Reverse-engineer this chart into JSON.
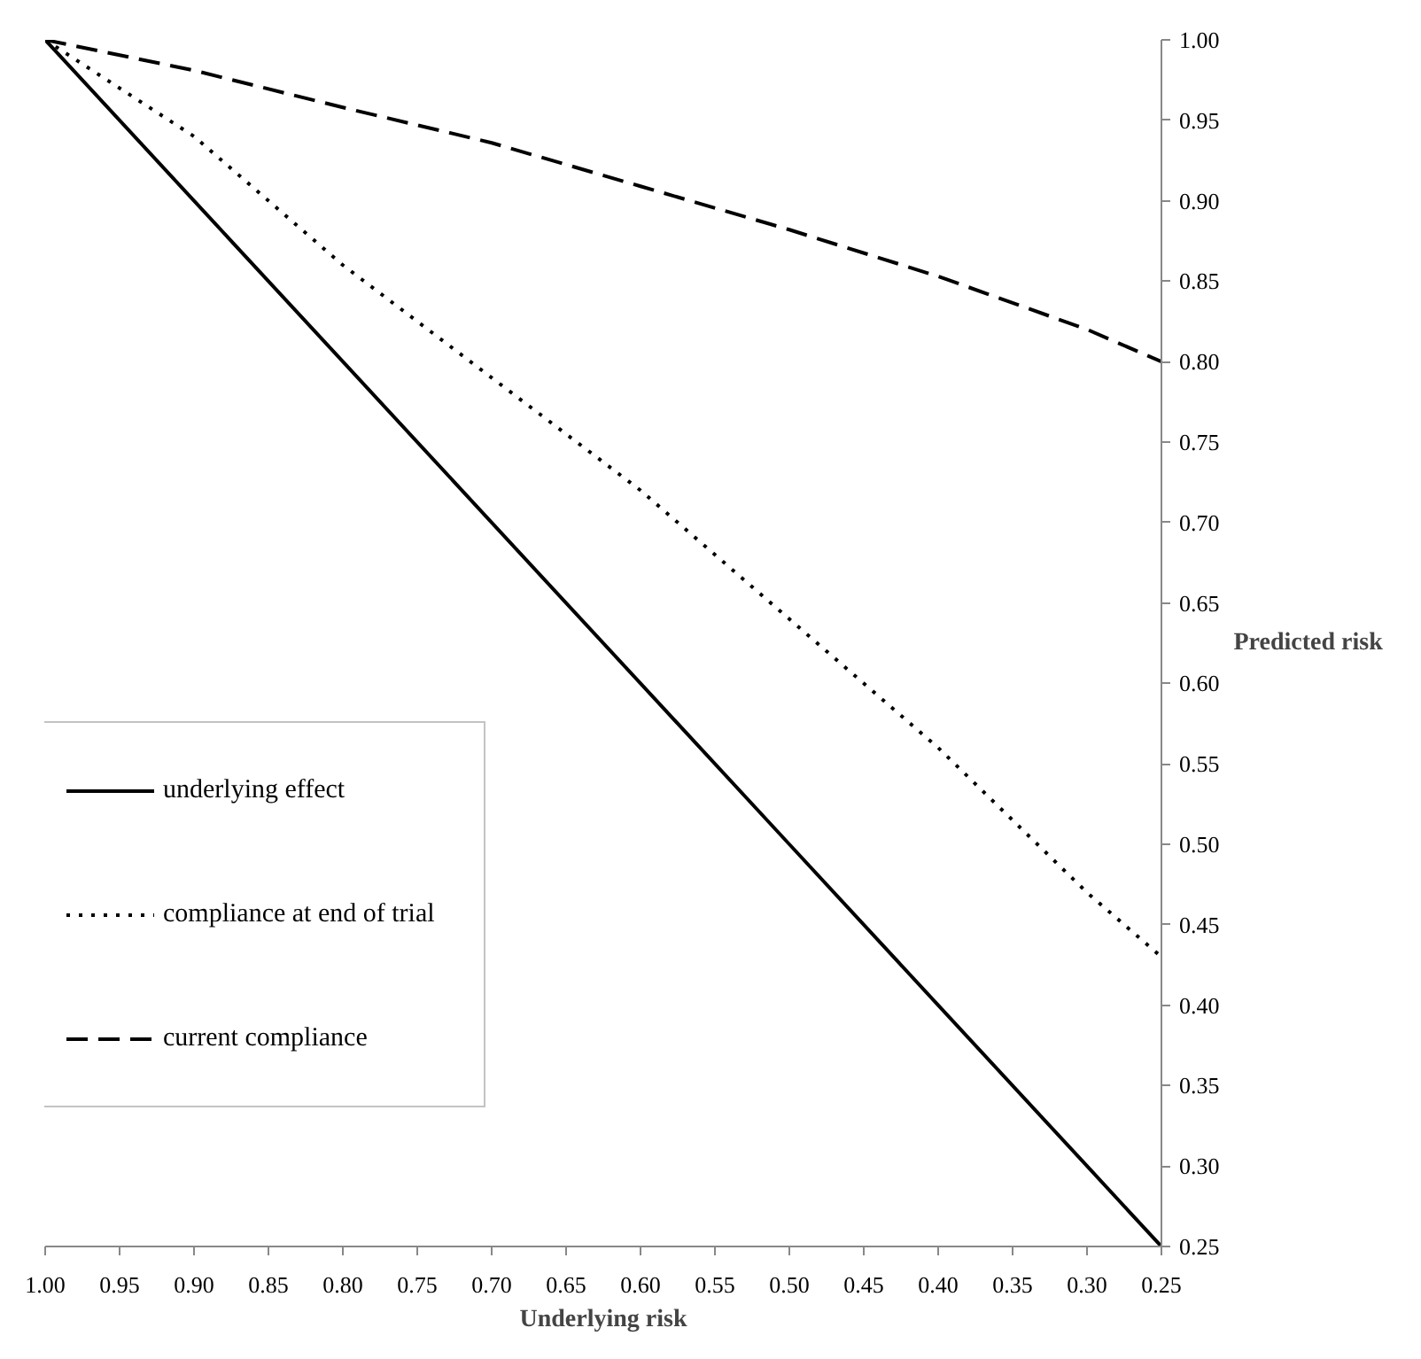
{
  "chart_data": {
    "type": "line",
    "xlabel": "Underlying risk",
    "ylabel": "Predicted risk",
    "x": [
      1.0,
      0.9,
      0.8,
      0.7,
      0.6,
      0.5,
      0.4,
      0.3,
      0.25
    ],
    "series": [
      {
        "name": "underlying effect",
        "color": "#000000",
        "line_style": "solid",
        "values": [
          1.0,
          0.9,
          0.8,
          0.7,
          0.6,
          0.5,
          0.4,
          0.3,
          0.25
        ]
      },
      {
        "name": "compliance at end of trial",
        "color": "#000000",
        "line_style": "dotted",
        "values": [
          1.0,
          0.94,
          0.86,
          0.79,
          0.72,
          0.64,
          0.56,
          0.47,
          0.43
        ]
      },
      {
        "name": "current compliance",
        "color": "#000000",
        "line_style": "dashed",
        "values": [
          1.0,
          0.981,
          0.958,
          0.936,
          0.909,
          0.882,
          0.853,
          0.82,
          0.8
        ]
      }
    ],
    "xlim": [
      1.0,
      0.25
    ],
    "ylim": [
      0.25,
      1.0
    ],
    "xticks": [
      {
        "value": 1.0,
        "label": "1.00"
      },
      {
        "value": 0.95,
        "label": "0.95"
      },
      {
        "value": 0.9,
        "label": "0.90"
      },
      {
        "value": 0.85,
        "label": "0.85"
      },
      {
        "value": 0.8,
        "label": "0.80"
      },
      {
        "value": 0.75,
        "label": "0.75"
      },
      {
        "value": 0.7,
        "label": "0.70"
      },
      {
        "value": 0.65,
        "label": "0.65"
      },
      {
        "value": 0.6,
        "label": "0.60"
      },
      {
        "value": 0.55,
        "label": "0.55"
      },
      {
        "value": 0.5,
        "label": "0.50"
      },
      {
        "value": 0.45,
        "label": "0.45"
      },
      {
        "value": 0.4,
        "label": "0.40"
      },
      {
        "value": 0.35,
        "label": "0.35"
      },
      {
        "value": 0.3,
        "label": "0.30"
      },
      {
        "value": 0.25,
        "label": "0.25"
      }
    ],
    "yticks": [
      {
        "value": 0.25,
        "label": "0.25"
      },
      {
        "value": 0.3,
        "label": "0.30"
      },
      {
        "value": 0.35,
        "label": "0.35"
      },
      {
        "value": 0.4,
        "label": "0.40"
      },
      {
        "value": 0.45,
        "label": "0.45"
      },
      {
        "value": 0.5,
        "label": "0.50"
      },
      {
        "value": 0.55,
        "label": "0.55"
      },
      {
        "value": 0.6,
        "label": "0.60"
      },
      {
        "value": 0.65,
        "label": "0.65"
      },
      {
        "value": 0.7,
        "label": "0.70"
      },
      {
        "value": 0.75,
        "label": "0.75"
      },
      {
        "value": 0.8,
        "label": "0.80"
      },
      {
        "value": 0.85,
        "label": "0.85"
      },
      {
        "value": 0.9,
        "label": "0.90"
      },
      {
        "value": 0.95,
        "label": "0.95"
      },
      {
        "value": 1.0,
        "label": "1.00"
      }
    ],
    "grid": false,
    "legend": "bottom left"
  }
}
